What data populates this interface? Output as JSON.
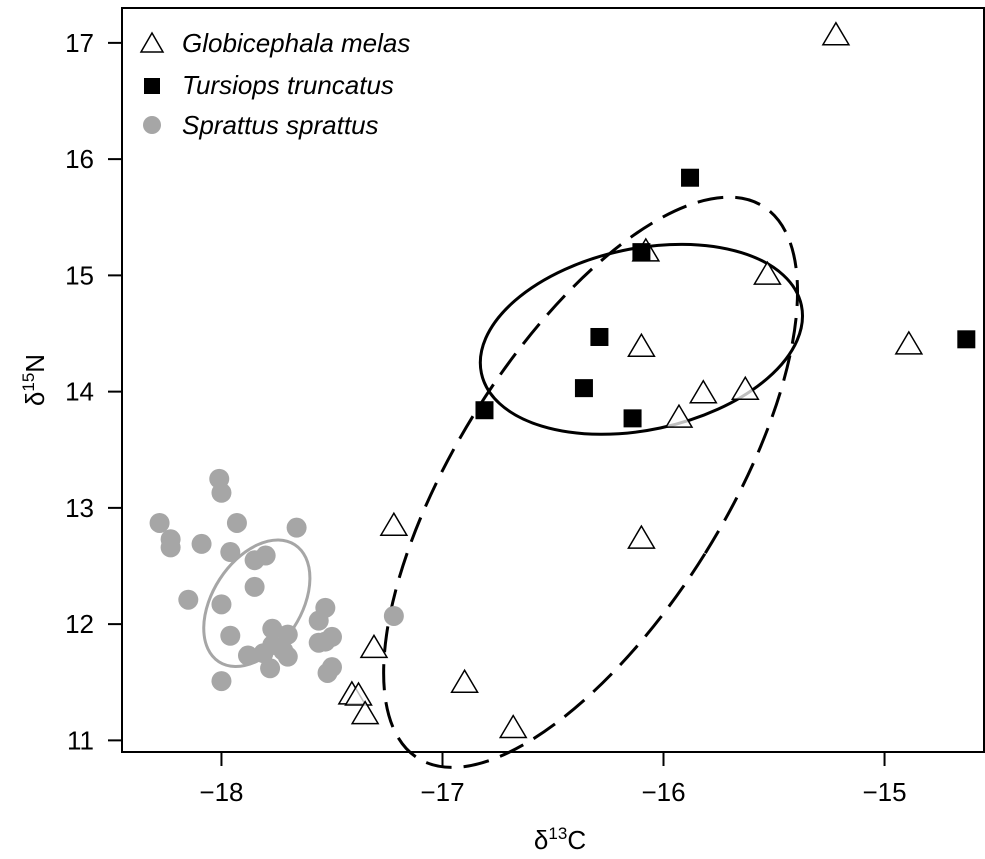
{
  "chart_data": {
    "type": "scatter",
    "title": "",
    "xlabel": {
      "base": "δ",
      "sup": "13",
      "tail": "C"
    },
    "ylabel": {
      "base": "δ",
      "sup": "15",
      "tail": "N"
    },
    "xlim": [
      -18.45,
      -14.55
    ],
    "ylim": [
      10.9,
      17.3
    ],
    "xticks": [
      -18,
      -17,
      -16,
      -15
    ],
    "xtick_labels": [
      "−18",
      "−17",
      "−16",
      "−15"
    ],
    "yticks": [
      11,
      12,
      13,
      14,
      15,
      16,
      17
    ],
    "ytick_labels": [
      "11",
      "12",
      "13",
      "14",
      "15",
      "16",
      "17"
    ],
    "grid": false,
    "legend_position": "top-left",
    "series": [
      {
        "name": "Globicephala melas",
        "marker": "open-triangle",
        "color": "#000000",
        "points": [
          [
            -15.22,
            17.06
          ],
          [
            -16.08,
            15.2
          ],
          [
            -15.53,
            15.0
          ],
          [
            -16.1,
            14.38
          ],
          [
            -14.89,
            14.4
          ],
          [
            -15.82,
            13.98
          ],
          [
            -15.63,
            14.01
          ],
          [
            -15.93,
            13.77
          ],
          [
            -17.22,
            12.84
          ],
          [
            -16.1,
            12.73
          ],
          [
            -17.31,
            11.79
          ],
          [
            -16.9,
            11.49
          ],
          [
            -17.41,
            11.39
          ],
          [
            -17.38,
            11.38
          ],
          [
            -17.35,
            11.22
          ],
          [
            -16.68,
            11.1
          ]
        ]
      },
      {
        "name": "Tursiops truncatus",
        "marker": "filled-square",
        "color": "#000000",
        "points": [
          [
            -15.88,
            15.84
          ],
          [
            -16.1,
            15.2
          ],
          [
            -16.29,
            14.47
          ],
          [
            -16.36,
            14.03
          ],
          [
            -16.14,
            13.77
          ],
          [
            -16.81,
            13.84
          ],
          [
            -14.63,
            14.45
          ]
        ]
      },
      {
        "name": "Sprattus sprattus",
        "marker": "filled-circle",
        "color": "#a6a6a6",
        "points": [
          [
            -18.01,
            13.25
          ],
          [
            -18.0,
            13.13
          ],
          [
            -18.28,
            12.87
          ],
          [
            -18.23,
            12.73
          ],
          [
            -18.23,
            12.66
          ],
          [
            -18.09,
            12.69
          ],
          [
            -17.93,
            12.87
          ],
          [
            -17.66,
            12.83
          ],
          [
            -17.96,
            12.62
          ],
          [
            -17.85,
            12.55
          ],
          [
            -17.8,
            12.59
          ],
          [
            -17.85,
            12.32
          ],
          [
            -18.15,
            12.21
          ],
          [
            -18.0,
            12.17
          ],
          [
            -17.96,
            11.9
          ],
          [
            -17.88,
            11.73
          ],
          [
            -17.81,
            11.75
          ],
          [
            -17.77,
            11.82
          ],
          [
            -17.72,
            11.77
          ],
          [
            -17.78,
            11.62
          ],
          [
            -17.7,
            11.91
          ],
          [
            -17.56,
            11.84
          ],
          [
            -17.53,
            11.85
          ],
          [
            -17.5,
            11.89
          ],
          [
            -17.53,
            12.14
          ],
          [
            -17.56,
            12.03
          ],
          [
            -17.52,
            11.58
          ],
          [
            -17.5,
            11.63
          ],
          [
            -17.22,
            12.07
          ],
          [
            -18.0,
            11.51
          ],
          [
            -17.77,
            11.96
          ],
          [
            -17.7,
            11.72
          ]
        ]
      }
    ],
    "ellipses": [
      {
        "series": "Tursiops truncatus",
        "style": "solid",
        "color": "#000000",
        "cx": -16.1,
        "cy": 14.45,
        "rx": 0.74,
        "ry": 0.78,
        "angle_deg": -12
      },
      {
        "series": "Globicephala melas",
        "style": "dashed",
        "color": "#000000",
        "cx": -16.33,
        "cy": 13.22,
        "rx": 0.61,
        "ry": 2.8,
        "angle_deg": 32
      },
      {
        "series": "Sprattus sprattus",
        "style": "solid",
        "color": "#a6a6a6",
        "cx": -17.84,
        "cy": 12.18,
        "rx": 0.2,
        "ry": 0.6,
        "angle_deg": 33
      }
    ]
  }
}
